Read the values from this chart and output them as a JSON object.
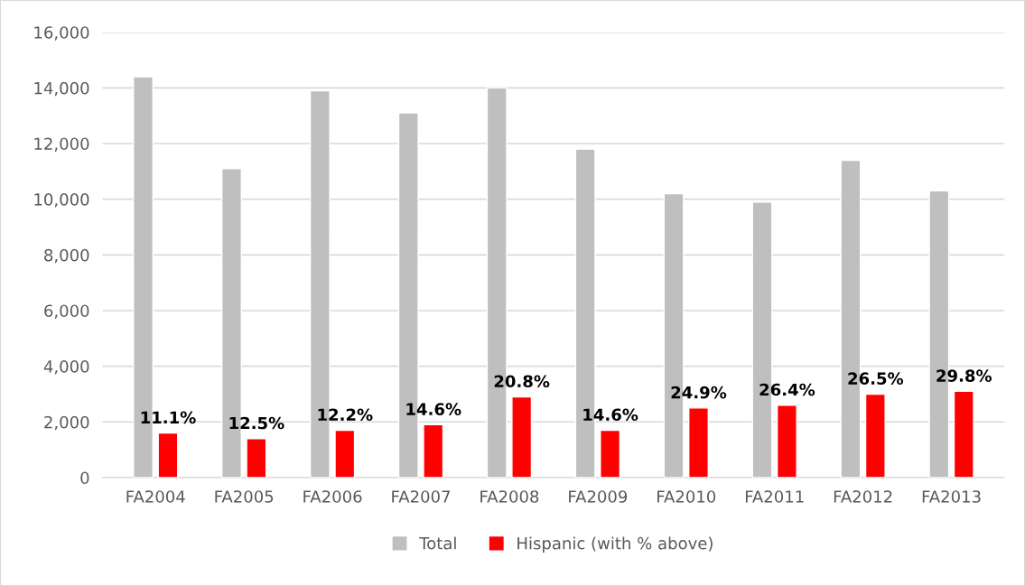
{
  "chart_data": {
    "type": "bar",
    "categories": [
      "FA2004",
      "FA2005",
      "FA2006",
      "FA2007",
      "FA2008",
      "FA2009",
      "FA2010",
      "FA2011",
      "FA2012",
      "FA2013"
    ],
    "series": [
      {
        "name": "Total",
        "color": "#bfbfbf",
        "values": [
          14400,
          11100,
          13900,
          13100,
          14000,
          11800,
          10200,
          9900,
          11400,
          10300
        ]
      },
      {
        "name": "Hispanic (with % above)",
        "color": "#ff0000",
        "values": [
          1600,
          1400,
          1700,
          1900,
          2900,
          1700,
          2500,
          2600,
          3000,
          3100
        ]
      }
    ],
    "annotations": [
      {
        "text": "11.1%",
        "x": "FA2004",
        "y": 1600
      },
      {
        "text": "12.5%",
        "x": "FA2005",
        "y": 1400
      },
      {
        "text": "12.2%",
        "x": "FA2006",
        "y": 1700
      },
      {
        "text": "14.6%",
        "x": "FA2007",
        "y": 1900
      },
      {
        "text": "20.8%",
        "x": "FA2008",
        "y": 2900
      },
      {
        "text": "14.6%",
        "x": "FA2009",
        "y": 1700
      },
      {
        "text": "24.9%",
        "x": "FA2010",
        "y": 2500
      },
      {
        "text": "26.4%",
        "x": "FA2011",
        "y": 2600
      },
      {
        "text": "26.5%",
        "x": "FA2012",
        "y": 3000
      },
      {
        "text": "29.8%",
        "x": "FA2013",
        "y": 3100
      }
    ],
    "ylim": [
      0,
      16000
    ],
    "yticks": [
      {
        "value": 0,
        "label": "0"
      },
      {
        "value": 2000,
        "label": "2,000"
      },
      {
        "value": 4000,
        "label": "4,000"
      },
      {
        "value": 6000,
        "label": "6,000"
      },
      {
        "value": 8000,
        "label": "8,000"
      },
      {
        "value": 10000,
        "label": "10,000"
      },
      {
        "value": 12000,
        "label": "12,000"
      },
      {
        "value": 14000,
        "label": "14,000"
      },
      {
        "value": 16000,
        "label": "16,000"
      }
    ],
    "grid": "y",
    "legend": "bottom"
  }
}
